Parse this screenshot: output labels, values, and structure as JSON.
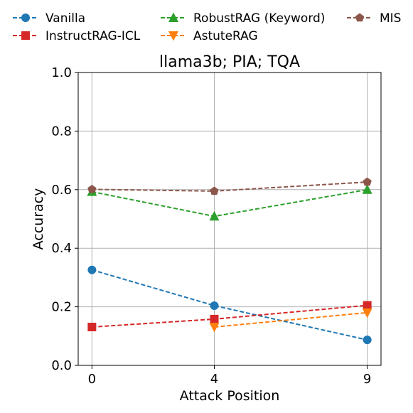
{
  "chart_data": {
    "type": "line",
    "title": "llama3b; PIA; TQA",
    "xlabel": "Attack Position",
    "ylabel": "Accuracy",
    "x": [
      0,
      4,
      9
    ],
    "x_tick_labels": [
      "0",
      "4",
      "9"
    ],
    "ylim": [
      0.0,
      1.0
    ],
    "y_ticks": [
      0.0,
      0.2,
      0.4,
      0.6,
      0.8,
      1.0
    ],
    "y_tick_labels": [
      "0.0",
      "0.2",
      "0.4",
      "0.6",
      "0.8",
      "1.0"
    ],
    "grid": true,
    "legend_placement": "top, outside plot, 3 columns",
    "series": [
      {
        "name": "Vanilla",
        "color": "#1f77b4",
        "marker": "circle",
        "x": [
          0,
          4,
          9
        ],
        "values": [
          0.326,
          0.204,
          0.087
        ]
      },
      {
        "name": "InstructRAG-ICL",
        "color": "#d62728",
        "marker": "square",
        "x": [
          0,
          4,
          9
        ],
        "values": [
          0.131,
          0.158,
          0.205
        ]
      },
      {
        "name": "RobustRAG (Keyword)",
        "color": "#2ca02c",
        "marker": "triangle-up",
        "x": [
          0,
          4,
          9
        ],
        "values": [
          0.593,
          0.509,
          0.6
        ]
      },
      {
        "name": "AstuteRAG",
        "color": "#ff7f0e",
        "marker": "triangle-down",
        "x": [
          4,
          9
        ],
        "values": [
          0.131,
          0.18
        ]
      },
      {
        "name": "MIS",
        "color": "#8c564b",
        "marker": "pentagon",
        "x": [
          0,
          4,
          9
        ],
        "values": [
          0.601,
          0.595,
          0.626
        ]
      }
    ]
  }
}
